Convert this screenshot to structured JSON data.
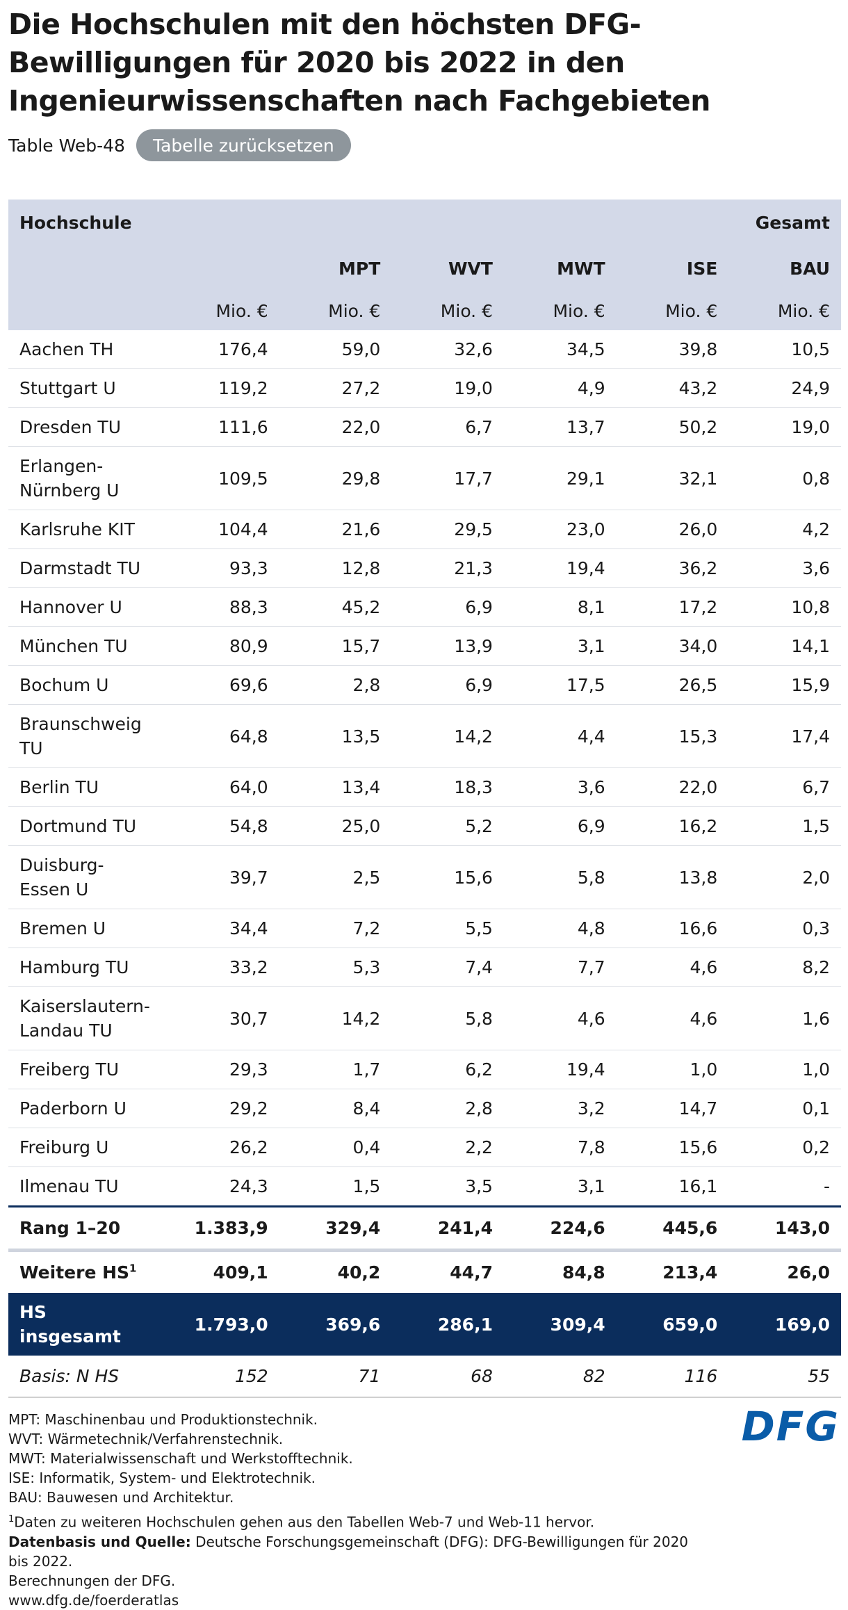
{
  "header": {
    "title": "Die Hochschulen mit den höchsten DFG-Bewilligungen für 2020 bis 2022 in den Ingenieurwissenschaften nach Fachgebieten",
    "table_id": "Table Web-48",
    "reset_button": "Tabelle zurücksetzen"
  },
  "table": {
    "head": {
      "first": "Hochschule",
      "total": "Gesamt",
      "columns": [
        "MPT",
        "WVT",
        "MWT",
        "ISE",
        "BAU"
      ],
      "units": [
        "Mio. €",
        "Mio. €",
        "Mio. €",
        "Mio. €",
        "Mio. €",
        "Mio. €"
      ]
    },
    "rows": [
      [
        "Aachen TH",
        "176,4",
        "59,0",
        "32,6",
        "34,5",
        "39,8",
        "10,5"
      ],
      [
        "Stuttgart U",
        "119,2",
        "27,2",
        "19,0",
        "4,9",
        "43,2",
        "24,9"
      ],
      [
        "Dresden TU",
        "111,6",
        "22,0",
        "6,7",
        "13,7",
        "50,2",
        "19,0"
      ],
      [
        "Erlangen-Nürnberg U",
        "109,5",
        "29,8",
        "17,7",
        "29,1",
        "32,1",
        "0,8"
      ],
      [
        "Karlsruhe KIT",
        "104,4",
        "21,6",
        "29,5",
        "23,0",
        "26,0",
        "4,2"
      ],
      [
        "Darmstadt TU",
        "93,3",
        "12,8",
        "21,3",
        "19,4",
        "36,2",
        "3,6"
      ],
      [
        "Hannover U",
        "88,3",
        "45,2",
        "6,9",
        "8,1",
        "17,2",
        "10,8"
      ],
      [
        "München TU",
        "80,9",
        "15,7",
        "13,9",
        "3,1",
        "34,0",
        "14,1"
      ],
      [
        "Bochum U",
        "69,6",
        "2,8",
        "6,9",
        "17,5",
        "26,5",
        "15,9"
      ],
      [
        "Braunschweig TU",
        "64,8",
        "13,5",
        "14,2",
        "4,4",
        "15,3",
        "17,4"
      ],
      [
        "Berlin TU",
        "64,0",
        "13,4",
        "18,3",
        "3,6",
        "22,0",
        "6,7"
      ],
      [
        "Dortmund TU",
        "54,8",
        "25,0",
        "5,2",
        "6,9",
        "16,2",
        "1,5"
      ],
      [
        "Duisburg-Essen U",
        "39,7",
        "2,5",
        "15,6",
        "5,8",
        "13,8",
        "2,0"
      ],
      [
        "Bremen U",
        "34,4",
        "7,2",
        "5,5",
        "4,8",
        "16,6",
        "0,3"
      ],
      [
        "Hamburg TU",
        "33,2",
        "5,3",
        "7,4",
        "7,7",
        "4,6",
        "8,2"
      ],
      [
        "Kaiserslautern-Landau TU",
        "30,7",
        "14,2",
        "5,8",
        "4,6",
        "4,6",
        "1,6"
      ],
      [
        "Freiberg TU",
        "29,3",
        "1,7",
        "6,2",
        "19,4",
        "1,0",
        "1,0"
      ],
      [
        "Paderborn U",
        "29,2",
        "8,4",
        "2,8",
        "3,2",
        "14,7",
        "0,1"
      ],
      [
        "Freiburg U",
        "26,2",
        "0,4",
        "2,2",
        "7,8",
        "15,6",
        "0,2"
      ],
      [
        "Ilmenau TU",
        "24,3",
        "1,5",
        "3,5",
        "3,1",
        "16,1",
        "-"
      ]
    ],
    "rank_row": [
      "Rang 1–20",
      "1.383,9",
      "329,4",
      "241,4",
      "224,6",
      "445,6",
      "143,0"
    ],
    "more_row": {
      "label": "Weitere HS",
      "footnote_mark": "1",
      "values": [
        "409,1",
        "40,2",
        "44,7",
        "84,8",
        "213,4",
        "26,0"
      ]
    },
    "total_row": [
      "HS insgesamt",
      "1.793,0",
      "369,6",
      "286,1",
      "309,4",
      "659,0",
      "169,0"
    ],
    "basis_row": [
      "Basis: N HS",
      "152",
      "71",
      "68",
      "82",
      "116",
      "55"
    ]
  },
  "footer": {
    "abbreviations": [
      "MPT: Maschinenbau und Produktionstechnik.",
      "WVT: Wärmetechnik/Verfahrenstechnik.",
      "MWT: Materialwissenschaft und Werkstofftechnik.",
      "ISE: Informatik, System- und Elektrotechnik.",
      "BAU: Bauwesen und Architektur."
    ],
    "footnote": {
      "mark": "1",
      "text": "Daten zu weiteren Hochschulen gehen aus den Tabellen Web-7 und Web-11 hervor."
    },
    "source_label": "Datenbasis und Quelle:",
    "source_text": "Deutsche Forschungsgemeinschaft (DFG): DFG-Bewilligungen für 2020 bis 2022.",
    "calc": "Berechnungen der DFG.",
    "url": "www.dfg.de/foerderatlas",
    "logo": "DFG"
  }
}
